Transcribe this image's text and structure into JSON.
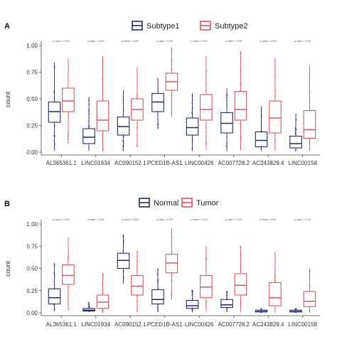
{
  "chart_data": [
    {
      "panel_label": "A",
      "type": "box",
      "ylabel": "count",
      "ylim": [
        0,
        1
      ],
      "yticks": [
        "0.00",
        "0.25",
        "0.50",
        "0.75",
        "1.00"
      ],
      "categories": [
        "AL365361.1",
        "LINC01934",
        "AC090152.1",
        "PCED1B-AS1",
        "LINC00426",
        "AC007728.2",
        "AC243829.4",
        "LINC00158"
      ],
      "pvalues": [
        "p-value < 0.001",
        "p-value < 0.001",
        "p-value < 0.001",
        "p-value < 0.001",
        "p-value < 0.001",
        "p-value < 0.001",
        "p-value < 0.001",
        "p-value < 0.001"
      ],
      "series": [
        {
          "name": "Subtype1",
          "color": "#1f2a6e",
          "boxes": [
            {
              "min": 0.01,
              "q1": 0.28,
              "median": 0.38,
              "q3": 0.47,
              "max": 0.84
            },
            {
              "min": 0.01,
              "q1": 0.08,
              "median": 0.14,
              "q3": 0.22,
              "max": 0.52
            },
            {
              "min": 0.01,
              "q1": 0.16,
              "median": 0.24,
              "q3": 0.33,
              "max": 0.58
            },
            {
              "min": 0.22,
              "q1": 0.38,
              "median": 0.47,
              "q3": 0.55,
              "max": 0.7
            },
            {
              "min": 0.01,
              "q1": 0.16,
              "median": 0.23,
              "q3": 0.32,
              "max": 0.55
            },
            {
              "min": 0.01,
              "q1": 0.18,
              "median": 0.27,
              "q3": 0.37,
              "max": 0.6
            },
            {
              "min": 0.01,
              "q1": 0.05,
              "median": 0.11,
              "q3": 0.19,
              "max": 0.43
            },
            {
              "min": 0.01,
              "q1": 0.04,
              "median": 0.08,
              "q3": 0.15,
              "max": 0.36
            }
          ]
        },
        {
          "name": "Subtype2",
          "color": "#e0535e",
          "boxes": [
            {
              "min": 0.08,
              "q1": 0.38,
              "median": 0.48,
              "q3": 0.6,
              "max": 0.88
            },
            {
              "min": 0.01,
              "q1": 0.2,
              "median": 0.3,
              "q3": 0.48,
              "max": 0.9
            },
            {
              "min": 0.05,
              "q1": 0.3,
              "median": 0.4,
              "q3": 0.5,
              "max": 0.8
            },
            {
              "min": 0.33,
              "q1": 0.58,
              "median": 0.66,
              "q3": 0.74,
              "max": 0.98
            },
            {
              "min": 0.02,
              "q1": 0.3,
              "median": 0.4,
              "q3": 0.54,
              "max": 0.9
            },
            {
              "min": 0.02,
              "q1": 0.3,
              "median": 0.4,
              "q3": 0.57,
              "max": 0.95
            },
            {
              "min": 0.01,
              "q1": 0.18,
              "median": 0.32,
              "q3": 0.48,
              "max": 0.88
            },
            {
              "min": 0.01,
              "q1": 0.13,
              "median": 0.21,
              "q3": 0.39,
              "max": 0.82
            }
          ]
        }
      ]
    },
    {
      "panel_label": "B",
      "type": "box",
      "ylabel": "count",
      "ylim": [
        0,
        1
      ],
      "yticks": [
        "0.00",
        "0.25",
        "0.50",
        "0.75",
        "1.00"
      ],
      "categories": [
        "AL365361.1",
        "LINC01934",
        "AC090152.1",
        "PCED1B-AS1",
        "LINC00426",
        "AC007728.2",
        "AC243829.4",
        "LINC00158"
      ],
      "pvalues": [
        "p-value < 0.001",
        "p-value < 0.001",
        "p-value < 0.001",
        "p-value < 0.001",
        "p-value < 0.001",
        "p-value < 0.001",
        "p-value < 0.001",
        "p-value < 0.001"
      ],
      "series": [
        {
          "name": "Normal",
          "color": "#1f2a6e",
          "boxes": [
            {
              "min": 0.02,
              "q1": 0.1,
              "median": 0.17,
              "q3": 0.27,
              "max": 0.56
            },
            {
              "min": 0.01,
              "q1": 0.02,
              "median": 0.03,
              "q3": 0.05,
              "max": 0.12
            },
            {
              "min": 0.33,
              "q1": 0.5,
              "median": 0.59,
              "q3": 0.67,
              "max": 0.88
            },
            {
              "min": 0.01,
              "q1": 0.1,
              "median": 0.15,
              "q3": 0.26,
              "max": 0.5
            },
            {
              "min": 0.01,
              "q1": 0.05,
              "median": 0.08,
              "q3": 0.14,
              "max": 0.26
            },
            {
              "min": 0.01,
              "q1": 0.06,
              "median": 0.09,
              "q3": 0.15,
              "max": 0.25
            },
            {
              "min": 0.0,
              "q1": 0.01,
              "median": 0.015,
              "q3": 0.03,
              "max": 0.05
            },
            {
              "min": 0.0,
              "q1": 0.01,
              "median": 0.015,
              "q3": 0.03,
              "max": 0.05
            }
          ]
        },
        {
          "name": "Tumor",
          "color": "#e0535e",
          "boxes": [
            {
              "min": 0.03,
              "q1": 0.32,
              "median": 0.42,
              "q3": 0.54,
              "max": 0.85
            },
            {
              "min": 0.0,
              "q1": 0.05,
              "median": 0.12,
              "q3": 0.2,
              "max": 0.45
            },
            {
              "min": 0.01,
              "q1": 0.2,
              "median": 0.3,
              "q3": 0.42,
              "max": 0.7
            },
            {
              "min": 0.15,
              "q1": 0.45,
              "median": 0.56,
              "q3": 0.66,
              "max": 0.95
            },
            {
              "min": 0.01,
              "q1": 0.17,
              "median": 0.29,
              "q3": 0.42,
              "max": 0.75
            },
            {
              "min": 0.01,
              "q1": 0.2,
              "median": 0.31,
              "q3": 0.44,
              "max": 0.75
            },
            {
              "min": 0.0,
              "q1": 0.08,
              "median": 0.17,
              "q3": 0.34,
              "max": 0.68
            },
            {
              "min": 0.0,
              "q1": 0.07,
              "median": 0.13,
              "q3": 0.24,
              "max": 0.5
            }
          ]
        }
      ]
    }
  ]
}
